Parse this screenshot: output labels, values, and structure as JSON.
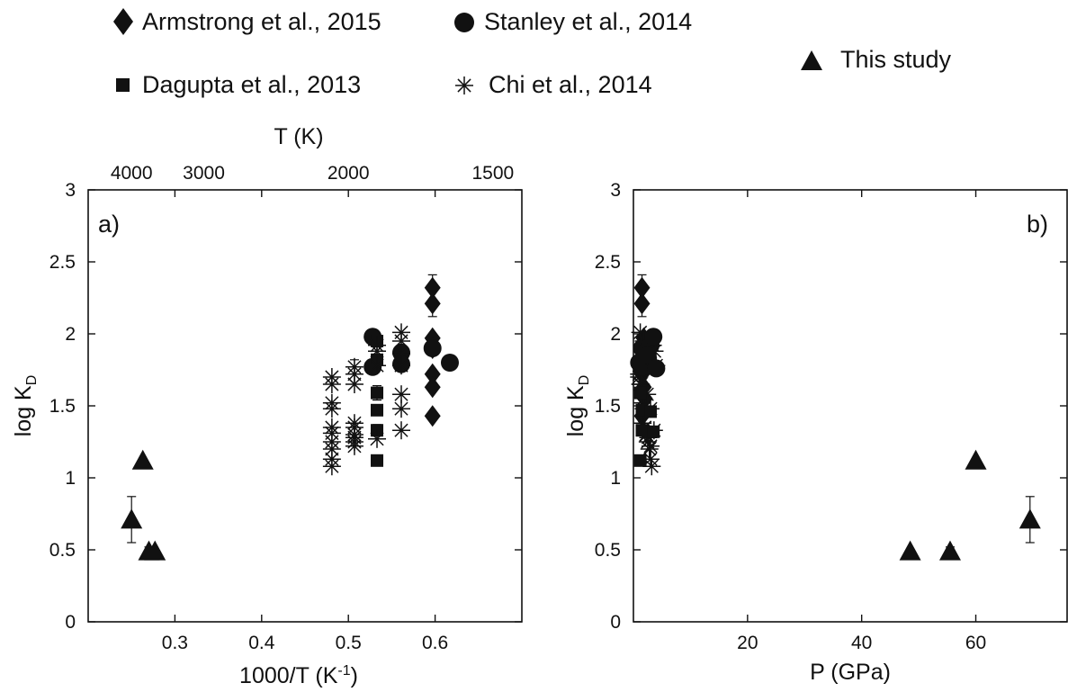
{
  "legend": [
    {
      "key": "armstrong",
      "label": "Armstrong et al., 2015",
      "marker": "diamond"
    },
    {
      "key": "stanley",
      "label": "Stanley et al., 2014",
      "marker": "circle"
    },
    {
      "key": "this",
      "label": "This study",
      "marker": "triangle"
    },
    {
      "key": "dasgupta",
      "label": "Dagupta et al., 2013",
      "marker": "square"
    },
    {
      "key": "chi",
      "label": "Chi et al., 2014",
      "marker": "asterisk"
    }
  ],
  "chart_data": [
    {
      "type": "scatter",
      "panel_label": "a)",
      "xlabel": "1000/T (K",
      "xlabel_sup": "-1",
      "xlabel_end": ")",
      "ylabel": "log K",
      "ylabel_sub": "D",
      "xlim": [
        0.2,
        0.7
      ],
      "ylim": [
        0,
        3
      ],
      "xticks": [
        0.3,
        0.4,
        0.5,
        0.6
      ],
      "xtick_labels": [
        "0.3",
        "0.4",
        "0.5",
        "0.6"
      ],
      "yticks": [
        0,
        0.5,
        1,
        1.5,
        2,
        2.5,
        3
      ],
      "ytick_labels": [
        "0",
        "0.5",
        "1",
        "1.5",
        "2",
        "2.5",
        "3"
      ],
      "top_axis": {
        "label": "T (K)",
        "ticks": [
          4000,
          3000,
          2000,
          1500
        ],
        "tick_labels": [
          "4000",
          "3000",
          "2000",
          "1500"
        ]
      },
      "series": [
        {
          "key": "armstrong",
          "marker": "diamond",
          "x": [
            0.597,
            0.597,
            0.597,
            0.597,
            0.597,
            0.597,
            0.597
          ],
          "y": [
            2.32,
            2.21,
            1.97,
            1.9,
            1.72,
            1.63,
            1.43
          ],
          "err": [
            0.09,
            0.09,
            0,
            0,
            0,
            0,
            0
          ]
        },
        {
          "key": "stanley",
          "marker": "circle",
          "x": [
            0.528,
            0.528,
            0.561,
            0.561,
            0.597,
            0.617
          ],
          "y": [
            1.98,
            1.77,
            1.87,
            1.79,
            1.9,
            1.8
          ],
          "err": [
            0,
            0,
            0,
            0,
            0,
            0
          ]
        },
        {
          "key": "dasgupta",
          "marker": "square",
          "x": [
            0.533,
            0.533,
            0.533,
            0.533,
            0.533,
            0.533
          ],
          "y": [
            1.95,
            1.82,
            1.59,
            1.47,
            1.33,
            1.12
          ],
          "err": [
            0,
            0,
            0.05,
            0,
            0.04,
            0
          ]
        },
        {
          "key": "chi",
          "marker": "asterisk",
          "x": [
            0.481,
            0.481,
            0.481,
            0.481,
            0.481,
            0.481,
            0.481,
            0.481,
            0.481,
            0.481,
            0.507,
            0.507,
            0.507,
            0.507,
            0.507,
            0.507,
            0.507,
            0.507,
            0.507,
            0.533,
            0.533,
            0.533,
            0.533,
            0.561,
            0.561,
            0.561,
            0.561,
            0.561,
            0.561,
            0.561
          ],
          "y": [
            1.7,
            1.65,
            1.52,
            1.48,
            1.35,
            1.31,
            1.25,
            1.2,
            1.13,
            1.08,
            1.77,
            1.72,
            1.65,
            1.38,
            1.35,
            1.3,
            1.28,
            1.25,
            1.22,
            1.92,
            1.88,
            1.78,
            1.27,
            2.01,
            1.95,
            1.86,
            1.78,
            1.58,
            1.48,
            1.33
          ],
          "err": [
            0,
            0,
            0,
            0,
            0,
            0,
            0,
            0,
            0,
            0,
            0.05,
            0,
            0,
            0,
            0,
            0,
            0,
            0,
            0,
            0,
            0,
            0,
            0,
            0,
            0,
            0,
            0,
            0,
            0,
            0
          ]
        },
        {
          "key": "this",
          "marker": "triangle",
          "x": [
            0.25,
            0.263,
            0.27,
            0.277
          ],
          "y": [
            0.71,
            1.12,
            0.49,
            0.49
          ],
          "err": [
            0.16,
            0,
            0.03,
            0
          ]
        }
      ]
    },
    {
      "type": "scatter",
      "panel_label": "b)",
      "xlabel": "P (GPa)",
      "ylabel": "log K",
      "ylabel_sub": "D",
      "xlim": [
        0,
        76
      ],
      "ylim": [
        0,
        3
      ],
      "xticks": [
        20,
        40,
        60
      ],
      "xtick_labels": [
        "20",
        "40",
        "60"
      ],
      "yticks": [
        0,
        0.5,
        1,
        1.5,
        2,
        2.5,
        3
      ],
      "ytick_labels": [
        "0",
        "0.5",
        "1",
        "1.5",
        "2",
        "2.5",
        "3"
      ],
      "series": [
        {
          "key": "armstrong",
          "marker": "diamond",
          "x": [
            1.5,
            1.5,
            1.8,
            2,
            1.5,
            1.8,
            2,
            1.5
          ],
          "y": [
            2.32,
            2.21,
            1.97,
            1.9,
            1.72,
            1.63,
            1.55,
            1.43
          ],
          "err": [
            0.09,
            0.09,
            0,
            0,
            0,
            0,
            0,
            0
          ]
        },
        {
          "key": "chi",
          "marker": "asterisk",
          "x": [
            1,
            1.2,
            1.5,
            1.8,
            2,
            2.2,
            2.5,
            2.8,
            3,
            3.2,
            3.5,
            1,
            1.3,
            1.6,
            2,
            2.3,
            2.6,
            3,
            3.4,
            3.7,
            4,
            1.2,
            1.8,
            2.4,
            3,
            3.6
          ],
          "y": [
            1.7,
            1.65,
            1.52,
            1.48,
            1.35,
            1.3,
            1.25,
            1.2,
            1.13,
            1.08,
            1.77,
            1.72,
            1.65,
            1.38,
            1.35,
            1.3,
            1.28,
            1.22,
            1.92,
            1.88,
            1.78,
            2.01,
            1.95,
            1.58,
            1.48,
            1.33
          ],
          "err": [
            0,
            0,
            0,
            0,
            0,
            0,
            0,
            0,
            0,
            0,
            0,
            0,
            0,
            0,
            0,
            0,
            0,
            0,
            0,
            0,
            0,
            0,
            0,
            0,
            0,
            0
          ]
        },
        {
          "key": "stanley",
          "marker": "circle",
          "x": [
            1,
            1.5,
            2,
            2.5,
            3,
            3.5,
            1.5,
            2.5,
            4
          ],
          "y": [
            1.8,
            1.9,
            1.87,
            1.79,
            1.92,
            1.98,
            1.77,
            1.85,
            1.76
          ],
          "err": [
            0,
            0,
            0,
            0,
            0,
            0,
            0,
            0,
            0
          ]
        },
        {
          "key": "dasgupta",
          "marker": "square",
          "x": [
            1.2,
            1.5,
            1.5,
            3,
            3.5,
            1.2
          ],
          "y": [
            1.59,
            1.47,
            1.33,
            1.46,
            1.32,
            1.12
          ],
          "err": [
            0,
            0,
            0,
            0,
            0,
            0
          ]
        },
        {
          "key": "this",
          "marker": "triangle",
          "x": [
            48.5,
            55.5,
            60,
            69.5
          ],
          "y": [
            0.49,
            0.49,
            1.12,
            0.71
          ],
          "err": [
            0,
            0.03,
            0,
            0.16
          ]
        }
      ]
    }
  ]
}
